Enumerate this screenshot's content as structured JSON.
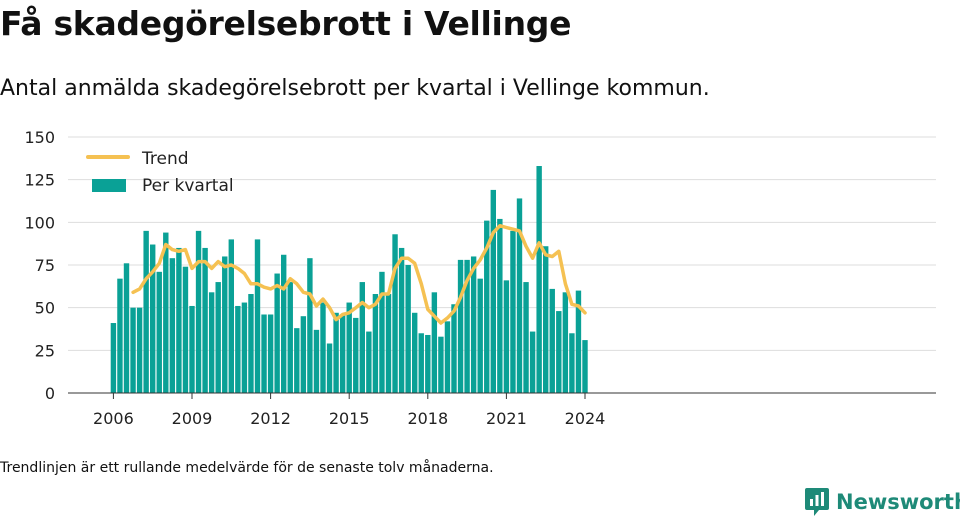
{
  "title": "Få skadegörelsebrott i Vellinge",
  "subtitle": "Antal anmälda skadegörelsebrott per kvartal i Vellinge kommun.",
  "footnote": "Trendlinjen är ett rullande medelvärde för de senaste tolv månaderna.",
  "brand": {
    "name": "Newsworthy",
    "icon": "newsworthy-logo-icon"
  },
  "colors": {
    "bars": "#0aa196",
    "trend": "#f5c152",
    "grid": "#dddddd",
    "brand": "#1e8a78"
  },
  "chart_data": {
    "type": "bar",
    "title": "",
    "xlabel": "",
    "ylabel": "",
    "ylim": [
      0,
      150
    ],
    "yticks": [
      0,
      25,
      50,
      75,
      100,
      125,
      150
    ],
    "xtick_labels": [
      "2006",
      "2009",
      "2012",
      "2015",
      "2018",
      "2021",
      "2024"
    ],
    "grid": true,
    "legend_position": "top-left",
    "categories": [
      "2006 K1",
      "2006 K2",
      "2006 K3",
      "2006 K4",
      "2007 K1",
      "2007 K2",
      "2007 K3",
      "2007 K4",
      "2008 K1",
      "2008 K2",
      "2008 K3",
      "2008 K4",
      "2009 K1",
      "2009 K2",
      "2009 K3",
      "2009 K4",
      "2010 K1",
      "2010 K2",
      "2010 K3",
      "2010 K4",
      "2011 K1",
      "2011 K2",
      "2011 K3",
      "2011 K4",
      "2012 K1",
      "2012 K2",
      "2012 K3",
      "2012 K4",
      "2013 K1",
      "2013 K2",
      "2013 K3",
      "2013 K4",
      "2014 K1",
      "2014 K2",
      "2014 K3",
      "2014 K4",
      "2015 K1",
      "2015 K2",
      "2015 K3",
      "2015 K4",
      "2016 K1",
      "2016 K2",
      "2016 K3",
      "2016 K4",
      "2017 K1",
      "2017 K2",
      "2017 K3",
      "2017 K4",
      "2018 K1",
      "2018 K2",
      "2018 K3",
      "2018 K4",
      "2019 K1",
      "2019 K2",
      "2019 K3",
      "2019 K4",
      "2020 K1",
      "2020 K2",
      "2020 K3",
      "2020 K4",
      "2021 K1",
      "2021 K2",
      "2021 K3",
      "2021 K4",
      "2022 K1",
      "2022 K2",
      "2022 K3",
      "2022 K4",
      "2023 K1",
      "2023 K2",
      "2023 K3",
      "2023 K4",
      "2024 K1"
    ],
    "series": [
      {
        "name": "Per kvartal",
        "kind": "bar",
        "values": [
          41,
          67,
          76,
          50,
          50,
          95,
          87,
          71,
          94,
          79,
          85,
          74,
          51,
          95,
          85,
          59,
          65,
          80,
          90,
          51,
          53,
          58,
          90,
          46,
          46,
          70,
          81,
          65,
          38,
          45,
          79,
          37,
          53,
          29,
          47,
          46,
          53,
          44,
          65,
          36,
          58,
          71,
          58,
          93,
          85,
          75,
          47,
          35,
          34,
          59,
          33,
          42,
          52,
          78,
          78,
          80,
          67,
          101,
          119,
          102,
          66,
          95,
          114,
          65,
          36,
          133,
          86,
          61,
          48,
          59,
          35,
          60,
          31
        ]
      },
      {
        "name": "Trend",
        "kind": "line",
        "values": [
          null,
          null,
          null,
          59,
          61,
          67,
          71,
          76,
          87,
          84,
          83,
          84,
          73,
          77,
          77,
          73,
          77,
          74,
          75,
          73,
          70,
          64,
          64,
          62,
          61,
          63,
          61,
          67,
          64,
          59,
          58,
          51,
          55,
          50,
          43,
          46,
          47,
          50,
          53,
          50,
          52,
          58,
          58,
          73,
          79,
          79,
          76,
          64,
          49,
          45,
          41,
          44,
          48,
          56,
          66,
          73,
          78,
          85,
          94,
          98,
          97,
          96,
          95,
          86,
          79,
          88,
          81,
          80,
          83,
          64,
          52,
          51,
          47
        ]
      }
    ]
  }
}
